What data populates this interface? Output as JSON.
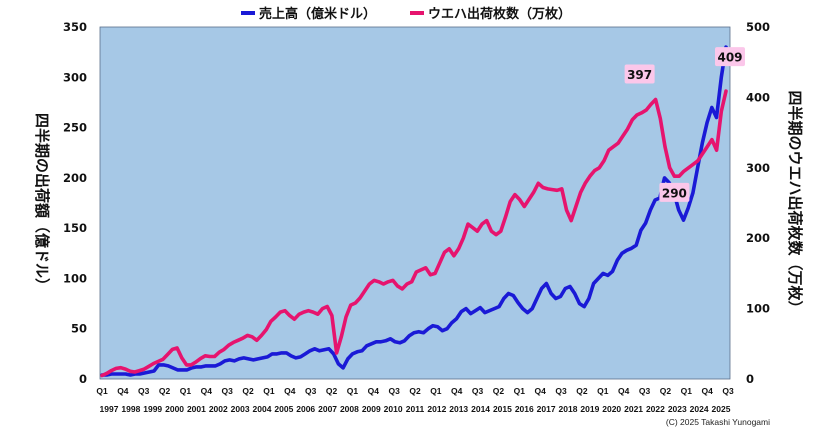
{
  "chart_data": {
    "type": "line",
    "legend_placement": "top-center",
    "grid": false,
    "plot_background": "#a6c8e6",
    "x_quarter_labels": [
      "Q1",
      "Q4",
      "Q3",
      "Q2",
      "Q1",
      "Q4",
      "Q3",
      "Q2",
      "Q1",
      "Q4",
      "Q3",
      "Q2",
      "Q1",
      "Q4",
      "Q3",
      "Q2",
      "Q1",
      "Q4",
      "Q3",
      "Q2",
      "Q1",
      "Q4",
      "Q3",
      "Q2",
      "Q1",
      "Q4",
      "Q3",
      "Q2",
      "Q1",
      "Q4",
      "Q3"
    ],
    "x_year_labels": [
      "1997",
      "1998",
      "1999",
      "2000",
      "2001",
      "2002",
      "2003",
      "2004",
      "2005",
      "2006",
      "2007",
      "2008",
      "2009",
      "2010",
      "2011",
      "2012",
      "2013",
      "2014",
      "2015",
      "2016",
      "2017",
      "2018",
      "2019",
      "2020",
      "2021",
      "2022",
      "2023",
      "2024",
      "2025"
    ],
    "y_left": {
      "label": "四半期の出荷額（億ドル）",
      "range": [
        0,
        350
      ],
      "ticks": [
        0,
        50,
        100,
        150,
        200,
        250,
        300,
        350
      ]
    },
    "y_right": {
      "label": "四半期のウエハ出荷枚数（万枚）",
      "range": [
        0,
        500
      ],
      "ticks": [
        0,
        100,
        200,
        300,
        400,
        500
      ]
    },
    "series": [
      {
        "name": "売上高（億米ドル）",
        "axis": "left",
        "color": "#1a1ad6",
        "values": [
          4,
          4,
          5,
          5,
          5,
          5,
          4,
          5,
          5,
          6,
          7,
          8,
          14,
          14,
          13,
          11,
          9,
          9,
          9,
          11,
          12,
          12,
          13,
          13,
          13,
          15,
          18,
          19,
          18,
          20,
          21,
          20,
          19,
          20,
          21,
          22,
          25,
          25,
          26,
          26,
          23,
          21,
          22,
          25,
          28,
          30,
          28,
          29,
          30,
          25,
          15,
          11,
          20,
          25,
          27,
          28,
          33,
          35,
          37,
          37,
          38,
          40,
          37,
          36,
          38,
          43,
          46,
          47,
          46,
          50,
          53,
          52,
          48,
          50,
          56,
          60,
          67,
          70,
          65,
          68,
          71,
          66,
          68,
          70,
          72,
          80,
          85,
          83,
          76,
          70,
          66,
          70,
          80,
          90,
          95,
          85,
          80,
          82,
          90,
          92,
          85,
          75,
          72,
          80,
          95,
          100,
          105,
          103,
          107,
          118,
          125,
          128,
          130,
          133,
          148,
          155,
          168,
          178,
          180,
          200,
          195,
          185,
          168,
          158,
          170,
          185,
          210,
          235,
          255,
          270,
          260,
          300,
          330
        ]
      },
      {
        "name": "ウエハ出荷枚数（万枚）",
        "axis": "right",
        "color": "#e6146e",
        "values": [
          5,
          8,
          12,
          15,
          16,
          14,
          11,
          10,
          12,
          14,
          18,
          22,
          25,
          28,
          35,
          42,
          44,
          30,
          20,
          20,
          24,
          29,
          33,
          32,
          32,
          38,
          42,
          48,
          52,
          55,
          58,
          62,
          60,
          55,
          62,
          70,
          82,
          88,
          95,
          97,
          90,
          85,
          92,
          95,
          97,
          95,
          92,
          100,
          103,
          90,
          37,
          60,
          88,
          105,
          108,
          115,
          125,
          135,
          140,
          138,
          135,
          138,
          140,
          132,
          128,
          135,
          138,
          152,
          155,
          158,
          148,
          150,
          165,
          180,
          185,
          175,
          185,
          200,
          220,
          215,
          210,
          220,
          225,
          210,
          205,
          210,
          230,
          252,
          262,
          255,
          245,
          255,
          265,
          278,
          272,
          270,
          269,
          268,
          270,
          240,
          225,
          245,
          265,
          278,
          288,
          296,
          300,
          310,
          325,
          330,
          335,
          345,
          355,
          368,
          375,
          378,
          382,
          390,
          397,
          370,
          330,
          300,
          288,
          288,
          295,
          300,
          305,
          310,
          320,
          330,
          340,
          325,
          380,
          409
        ]
      }
    ],
    "annotations": [
      {
        "text": "397",
        "series": "ウエハ出荷枚数（万枚）",
        "background": "#fbc7ea"
      },
      {
        "text": "290",
        "series": "ウエハ出荷枚数（万枚）",
        "background": "#fbc7ea"
      },
      {
        "text": "409",
        "series": "ウエハ出荷枚数（万枚）",
        "background": "#fbc7ea"
      }
    ],
    "credit": "(C)  2025 Takashi Yunogami"
  }
}
